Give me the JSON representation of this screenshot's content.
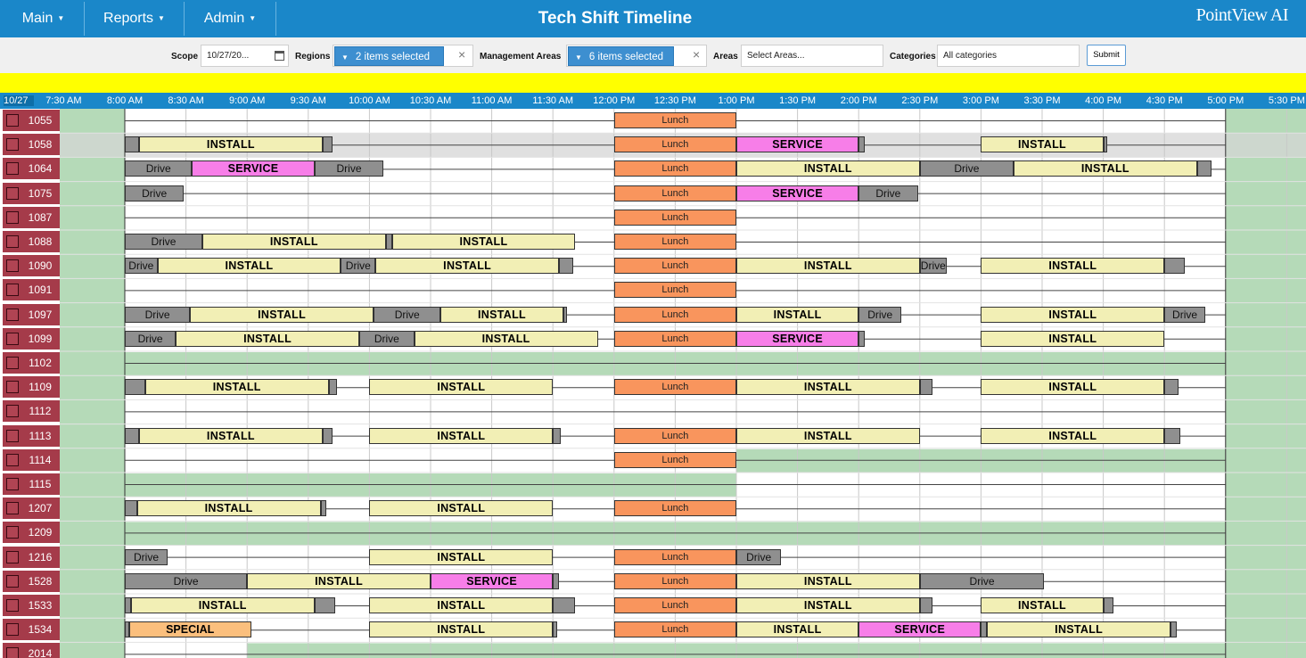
{
  "nav": {
    "menus": [
      {
        "label": "Main"
      },
      {
        "label": "Reports"
      },
      {
        "label": "Admin"
      }
    ],
    "title": "Tech Shift Timeline",
    "logo": "PointView AI"
  },
  "filters": {
    "scope_label": "Scope",
    "scope_value": "10/27/20...",
    "regions_label": "Regions",
    "regions_value": "2 items selected",
    "mgmt_label": "Management Areas",
    "mgmt_value": "6 items selected",
    "areas_label": "Areas",
    "areas_placeholder": "Select Areas...",
    "categories_label": "Categories",
    "categories_value": "All categories",
    "submit_label": "Submit"
  },
  "colors": {
    "header_blue": "#1a87c9",
    "banner_yellow": "#ffff00",
    "tech_label": "#a53b4a",
    "install": "#f2efb5",
    "service": "#f77ee8",
    "drive": "#8f8f8f",
    "lunch": "#f9955d",
    "special": "#fbbf7d",
    "off_shift_green": "#b5dab8"
  },
  "timeline": {
    "date": "10/27",
    "ticks": [
      "7:30 AM",
      "8:00 AM",
      "8:30 AM",
      "9:00 AM",
      "9:30 AM",
      "10:00 AM",
      "10:30 AM",
      "11:00 AM",
      "11:30 AM",
      "12:00 PM",
      "12:30 PM",
      "1:00 PM",
      "1:30 PM",
      "2:00 PM",
      "2:30 PM",
      "3:00 PM",
      "3:30 PM",
      "4:00 PM",
      "4:30 PM",
      "5:00 PM",
      "5:30 PM"
    ],
    "rows": [
      {
        "id": "1055",
        "off": [],
        "blocks": [
          [
            "lunch",
            "12:00",
            "13:00",
            "Lunch"
          ]
        ]
      },
      {
        "id": "1058",
        "selected": true,
        "off": [],
        "blocks": [
          [
            "drive",
            "08:00",
            "08:07",
            ""
          ],
          [
            "install",
            "08:07",
            "09:37",
            "INSTALL"
          ],
          [
            "drive",
            "09:37",
            "09:42",
            ""
          ],
          [
            "lunch",
            "12:00",
            "13:00",
            "Lunch"
          ],
          [
            "service",
            "13:00",
            "14:00",
            "SERVICE"
          ],
          [
            "drive",
            "14:00",
            "14:03",
            ""
          ],
          [
            "install",
            "15:00",
            "16:00",
            "INSTALL"
          ],
          [
            "drive",
            "16:00",
            "16:02",
            ""
          ]
        ]
      },
      {
        "id": "1064",
        "off": [],
        "blocks": [
          [
            "drive",
            "08:00",
            "08:33",
            "Drive"
          ],
          [
            "service",
            "08:33",
            "09:33",
            "SERVICE"
          ],
          [
            "drive",
            "09:33",
            "10:07",
            "Drive"
          ],
          [
            "lunch",
            "12:00",
            "13:00",
            "Lunch"
          ],
          [
            "install",
            "13:00",
            "14:30",
            "INSTALL"
          ],
          [
            "drive",
            "14:30",
            "15:16",
            "Drive"
          ],
          [
            "install",
            "15:16",
            "16:46",
            "INSTALL"
          ],
          [
            "drive",
            "16:46",
            "16:53",
            ""
          ]
        ]
      },
      {
        "id": "1075",
        "off": [],
        "blocks": [
          [
            "drive",
            "08:00",
            "08:29",
            "Drive"
          ],
          [
            "lunch",
            "12:00",
            "13:00",
            "Lunch"
          ],
          [
            "service",
            "13:00",
            "14:00",
            "SERVICE"
          ],
          [
            "drive",
            "14:00",
            "14:29",
            "Drive"
          ]
        ]
      },
      {
        "id": "1087",
        "off": [],
        "blocks": [
          [
            "lunch",
            "12:00",
            "13:00",
            "Lunch"
          ]
        ]
      },
      {
        "id": "1088",
        "off": [],
        "blocks": [
          [
            "drive",
            "08:00",
            "08:38",
            "Drive"
          ],
          [
            "install",
            "08:38",
            "10:08",
            "INSTALL"
          ],
          [
            "drive",
            "10:08",
            "10:11",
            ""
          ],
          [
            "install",
            "10:11",
            "11:41",
            "INSTALL"
          ],
          [
            "lunch",
            "12:00",
            "13:00",
            "Lunch"
          ]
        ]
      },
      {
        "id": "1090",
        "off": [],
        "blocks": [
          [
            "drive",
            "08:00",
            "08:16",
            "Drive"
          ],
          [
            "install",
            "08:16",
            "09:46",
            "INSTALL"
          ],
          [
            "drive",
            "09:46",
            "10:03",
            "Drive"
          ],
          [
            "install",
            "10:03",
            "11:33",
            "INSTALL"
          ],
          [
            "drive",
            "11:33",
            "11:40",
            ""
          ],
          [
            "lunch",
            "12:00",
            "13:00",
            "Lunch"
          ],
          [
            "install",
            "13:00",
            "14:30",
            "INSTALL"
          ],
          [
            "drive",
            "14:30",
            "14:43",
            "Drive"
          ],
          [
            "install",
            "15:00",
            "16:30",
            "INSTALL"
          ],
          [
            "drive",
            "16:30",
            "16:40",
            ""
          ]
        ]
      },
      {
        "id": "1091",
        "off": [],
        "blocks": [
          [
            "lunch",
            "12:00",
            "13:00",
            "Lunch"
          ]
        ]
      },
      {
        "id": "1097",
        "off": [],
        "blocks": [
          [
            "drive",
            "08:00",
            "08:32",
            "Drive"
          ],
          [
            "install",
            "08:32",
            "10:02",
            "INSTALL"
          ],
          [
            "drive",
            "10:02",
            "10:35",
            "Drive"
          ],
          [
            "install",
            "10:35",
            "11:35",
            "INSTALL"
          ],
          [
            "drive",
            "11:35",
            "11:36",
            ""
          ],
          [
            "lunch",
            "12:00",
            "13:00",
            "Lunch"
          ],
          [
            "install",
            "13:00",
            "14:00",
            "INSTALL"
          ],
          [
            "drive",
            "14:00",
            "14:21",
            "Drive"
          ],
          [
            "install",
            "15:00",
            "16:30",
            "INSTALL"
          ],
          [
            "drive",
            "16:30",
            "16:50",
            "Drive"
          ]
        ]
      },
      {
        "id": "1099",
        "off": [],
        "blocks": [
          [
            "drive",
            "08:00",
            "08:25",
            "Drive"
          ],
          [
            "install",
            "08:25",
            "09:55",
            "INSTALL"
          ],
          [
            "drive",
            "09:55",
            "10:22",
            "Drive"
          ],
          [
            "install",
            "10:22",
            "11:52",
            "INSTALL"
          ],
          [
            "lunch",
            "12:00",
            "13:00",
            "Lunch"
          ],
          [
            "service",
            "13:00",
            "14:00",
            "SERVICE"
          ],
          [
            "drive",
            "14:00",
            "14:03",
            ""
          ],
          [
            "install",
            "15:00",
            "16:30",
            "INSTALL"
          ]
        ]
      },
      {
        "id": "1102",
        "off": [
          [
            8.0,
            17.0
          ]
        ],
        "blocks": []
      },
      {
        "id": "1109",
        "off": [],
        "blocks": [
          [
            "drive",
            "08:00",
            "08:10",
            ""
          ],
          [
            "install",
            "08:10",
            "09:40",
            "INSTALL"
          ],
          [
            "drive",
            "09:40",
            "09:44",
            ""
          ],
          [
            "install",
            "10:00",
            "11:30",
            "INSTALL"
          ],
          [
            "lunch",
            "12:00",
            "13:00",
            "Lunch"
          ],
          [
            "install",
            "13:00",
            "14:30",
            "INSTALL"
          ],
          [
            "drive",
            "14:30",
            "14:36",
            ""
          ],
          [
            "install",
            "15:00",
            "16:30",
            "INSTALL"
          ],
          [
            "drive",
            "16:30",
            "16:37",
            ""
          ]
        ]
      },
      {
        "id": "1112",
        "off": [],
        "blocks": []
      },
      {
        "id": "1113",
        "off": [],
        "blocks": [
          [
            "drive",
            "08:00",
            "08:07",
            ""
          ],
          [
            "install",
            "08:07",
            "09:37",
            "INSTALL"
          ],
          [
            "drive",
            "09:37",
            "09:42",
            ""
          ],
          [
            "install",
            "10:00",
            "11:30",
            "INSTALL"
          ],
          [
            "drive",
            "11:30",
            "11:34",
            ""
          ],
          [
            "lunch",
            "12:00",
            "13:00",
            "Lunch"
          ],
          [
            "install",
            "13:00",
            "14:30",
            "INSTALL"
          ],
          [
            "install",
            "15:00",
            "16:30",
            "INSTALL"
          ],
          [
            "drive",
            "16:30",
            "16:38",
            ""
          ]
        ]
      },
      {
        "id": "1114",
        "off": [
          [
            13.0,
            17.0
          ]
        ],
        "blocks": [
          [
            "lunch",
            "12:00",
            "13:00",
            "Lunch"
          ]
        ]
      },
      {
        "id": "1115",
        "off": [
          [
            8.0,
            13.0
          ]
        ],
        "blocks": []
      },
      {
        "id": "1207",
        "off": [],
        "blocks": [
          [
            "drive",
            "08:00",
            "08:06",
            ""
          ],
          [
            "install",
            "08:06",
            "09:36",
            "INSTALL"
          ],
          [
            "drive",
            "09:36",
            "09:39",
            ""
          ],
          [
            "install",
            "10:00",
            "11:30",
            "INSTALL"
          ],
          [
            "lunch",
            "12:00",
            "13:00",
            "Lunch"
          ]
        ]
      },
      {
        "id": "1209",
        "off": [
          [
            8.0,
            17.0
          ]
        ],
        "blocks": []
      },
      {
        "id": "1216",
        "off": [],
        "blocks": [
          [
            "drive",
            "08:00",
            "08:21",
            "Drive"
          ],
          [
            "install",
            "10:00",
            "11:30",
            "INSTALL"
          ],
          [
            "lunch",
            "12:00",
            "13:00",
            "Lunch"
          ],
          [
            "drive",
            "13:00",
            "13:22",
            "Drive"
          ]
        ]
      },
      {
        "id": "1528",
        "off": [],
        "blocks": [
          [
            "drive",
            "08:00",
            "09:00",
            "Drive"
          ],
          [
            "install",
            "09:00",
            "10:30",
            "INSTALL"
          ],
          [
            "service",
            "10:30",
            "11:30",
            "SERVICE"
          ],
          [
            "drive",
            "11:30",
            "11:33",
            ""
          ],
          [
            "lunch",
            "12:00",
            "13:00",
            "Lunch"
          ],
          [
            "install",
            "13:00",
            "14:30",
            "INSTALL"
          ],
          [
            "drive",
            "14:30",
            "15:31",
            "Drive"
          ]
        ]
      },
      {
        "id": "1533",
        "off": [],
        "blocks": [
          [
            "drive",
            "08:00",
            "08:03",
            ""
          ],
          [
            "install",
            "08:03",
            "09:33",
            "INSTALL"
          ],
          [
            "drive",
            "09:33",
            "09:43",
            ""
          ],
          [
            "install",
            "10:00",
            "11:30",
            "INSTALL"
          ],
          [
            "drive",
            "11:30",
            "11:41",
            ""
          ],
          [
            "lunch",
            "12:00",
            "13:00",
            "Lunch"
          ],
          [
            "install",
            "13:00",
            "14:30",
            "INSTALL"
          ],
          [
            "drive",
            "14:30",
            "14:36",
            ""
          ],
          [
            "install",
            "15:00",
            "16:00",
            "INSTALL"
          ],
          [
            "drive",
            "16:00",
            "16:05",
            ""
          ]
        ]
      },
      {
        "id": "1534",
        "off": [],
        "blocks": [
          [
            "drive",
            "08:00",
            "08:02",
            ""
          ],
          [
            "special",
            "08:02",
            "09:02",
            "SPECIAL"
          ],
          [
            "install",
            "10:00",
            "11:30",
            "INSTALL"
          ],
          [
            "drive",
            "11:30",
            "11:32",
            ""
          ],
          [
            "lunch",
            "12:00",
            "13:00",
            "Lunch"
          ],
          [
            "install",
            "13:00",
            "14:00",
            "INSTALL"
          ],
          [
            "service",
            "14:00",
            "15:00",
            "SERVICE"
          ],
          [
            "drive",
            "15:00",
            "15:03",
            ""
          ],
          [
            "install",
            "15:03",
            "16:33",
            "INSTALL"
          ],
          [
            "drive",
            "16:33",
            "16:36",
            ""
          ]
        ]
      },
      {
        "id": "2014",
        "off": [
          [
            9.0,
            17.0
          ]
        ],
        "blocks": []
      }
    ]
  }
}
